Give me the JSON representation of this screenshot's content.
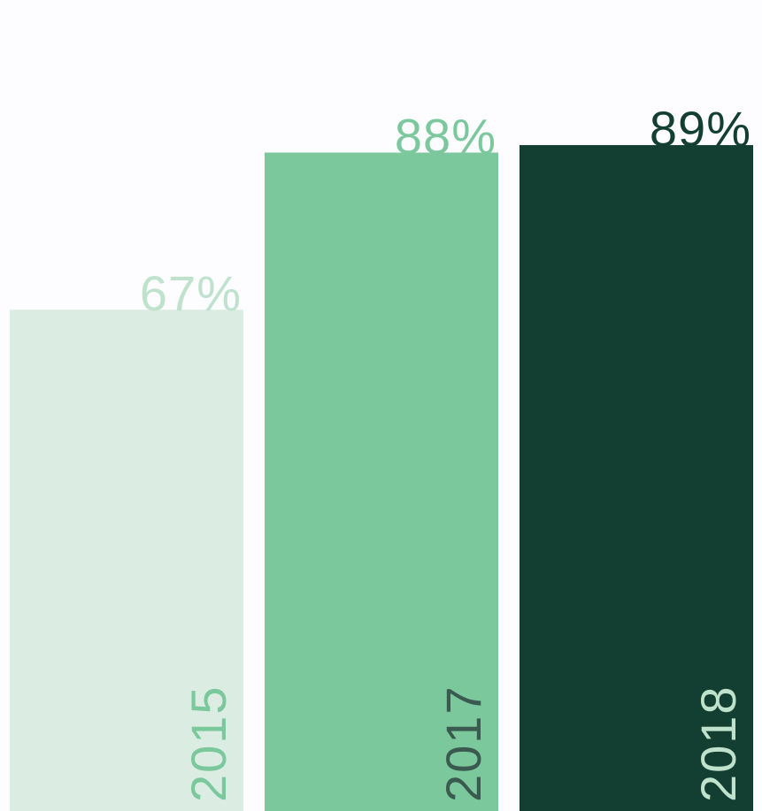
{
  "chart_data": {
    "type": "bar",
    "categories": [
      "2015",
      "2017",
      "2018"
    ],
    "values": [
      67,
      88,
      89
    ],
    "value_labels": [
      "67%",
      "88%",
      "89%"
    ],
    "value_suffix": "%",
    "ylim": [
      0,
      100
    ],
    "grid": false,
    "legend": "none",
    "bar_colors": [
      "#dbede3",
      "#7bc89c",
      "#133f32"
    ],
    "value_label_colors": [
      "#bfe2cd",
      "#7bc89c",
      "#133f32"
    ],
    "category_label_colors": [
      "#7bc89c",
      "#3a5a50",
      "#bfe2cd"
    ],
    "background": "#fdfcff"
  }
}
